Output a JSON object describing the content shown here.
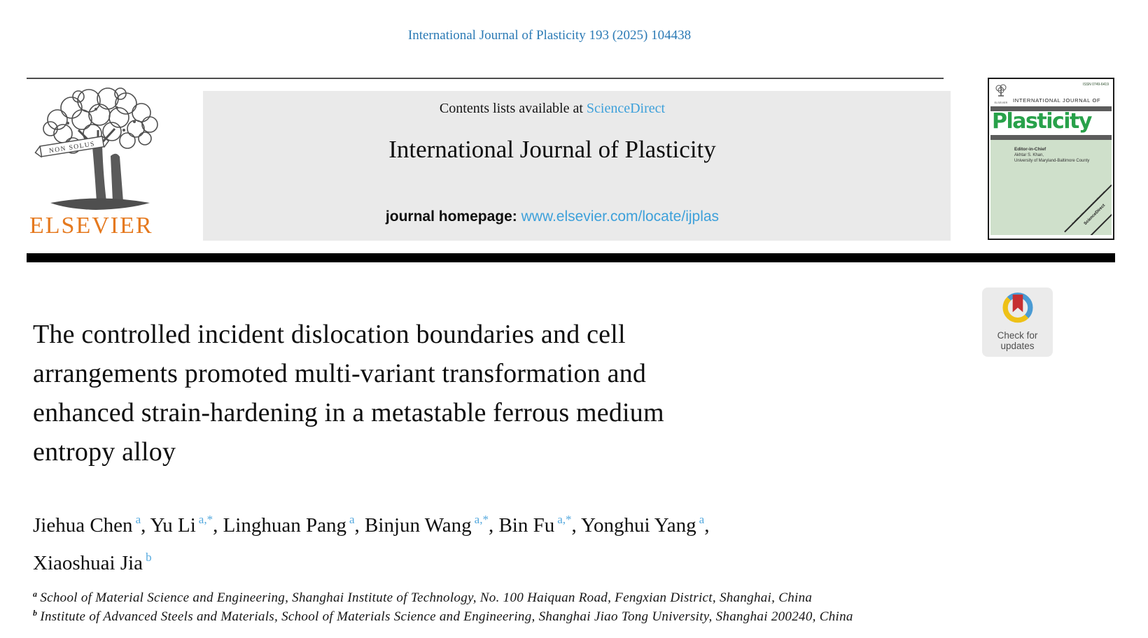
{
  "header": {
    "citation": "International Journal of Plasticity 193 (2025) 104438"
  },
  "publisher": {
    "name": "ELSEVIER",
    "motto": "NON SOLUS"
  },
  "banner": {
    "contents_prefix": "Contents lists available at ",
    "sciencedirect_link": "ScienceDirect",
    "journal_title": "International Journal of Plasticity",
    "homepage_label": "journal homepage: ",
    "homepage_url": "www.elsevier.com/locate/ijplas"
  },
  "cover": {
    "issn": "ISSN 0749-6419",
    "publisher": "ELSEVIER",
    "kicker": "INTERNATIONAL JOURNAL OF",
    "title": "Plasticity",
    "editor_label": "Editor-in-Chief",
    "editor_name": "Akhtar S. Khan,",
    "editor_affiliation": "University of Maryland-Baltimore County",
    "available_online": "Available online at www.sciencedirect.com",
    "sciencedirect": "ScienceDirect"
  },
  "badge": {
    "line1": "Check for",
    "line2": "updates"
  },
  "article": {
    "title_lines": [
      "The controlled incident dislocation boundaries and cell",
      "arrangements promoted multi-variant transformation and",
      "enhanced strain-hardening in a metastable ferrous medium",
      "entropy alloy"
    ],
    "author_lines": [
      [
        {
          "name": "Jiehua Chen",
          "sup": "a",
          "tail": ", "
        },
        {
          "name": "Yu Li",
          "sup": "a,*",
          "tail": ", "
        },
        {
          "name": "Linghuan Pang",
          "sup": "a",
          "tail": ", "
        },
        {
          "name": "Binjun Wang",
          "sup": "a,*",
          "tail": ", "
        },
        {
          "name": "Bin Fu",
          "sup": "a,*",
          "tail": ", "
        },
        {
          "name": "Yonghui Yang",
          "sup": "a",
          "tail": ","
        }
      ],
      [
        {
          "name": "Xiaoshuai Jia",
          "sup": "b",
          "tail": ""
        }
      ]
    ],
    "affiliations": [
      {
        "sup": "a",
        "text": "School of Material Science and Engineering, Shanghai Institute of Technology, No. 100 Haiquan Road, Fengxian District, Shanghai, China"
      },
      {
        "sup": "b",
        "text": "Institute of Advanced Steels and Materials, School of Materials Science and Engineering, Shanghai Jiao Tong University, Shanghai 200240, China"
      }
    ]
  },
  "colors": {
    "citation_blue": "#2b7ab5",
    "link_blue": "#3da0da",
    "superscript_blue": "#55a9de",
    "elsevier_orange": "#e5791e",
    "banner_gray": "#eaeaea",
    "cover_green": "#28a14a",
    "cover_mint": "#cfe0cb",
    "badge_blue": "#4a9bd4",
    "badge_yellow": "#eec117",
    "badge_red": "#c62f31"
  }
}
